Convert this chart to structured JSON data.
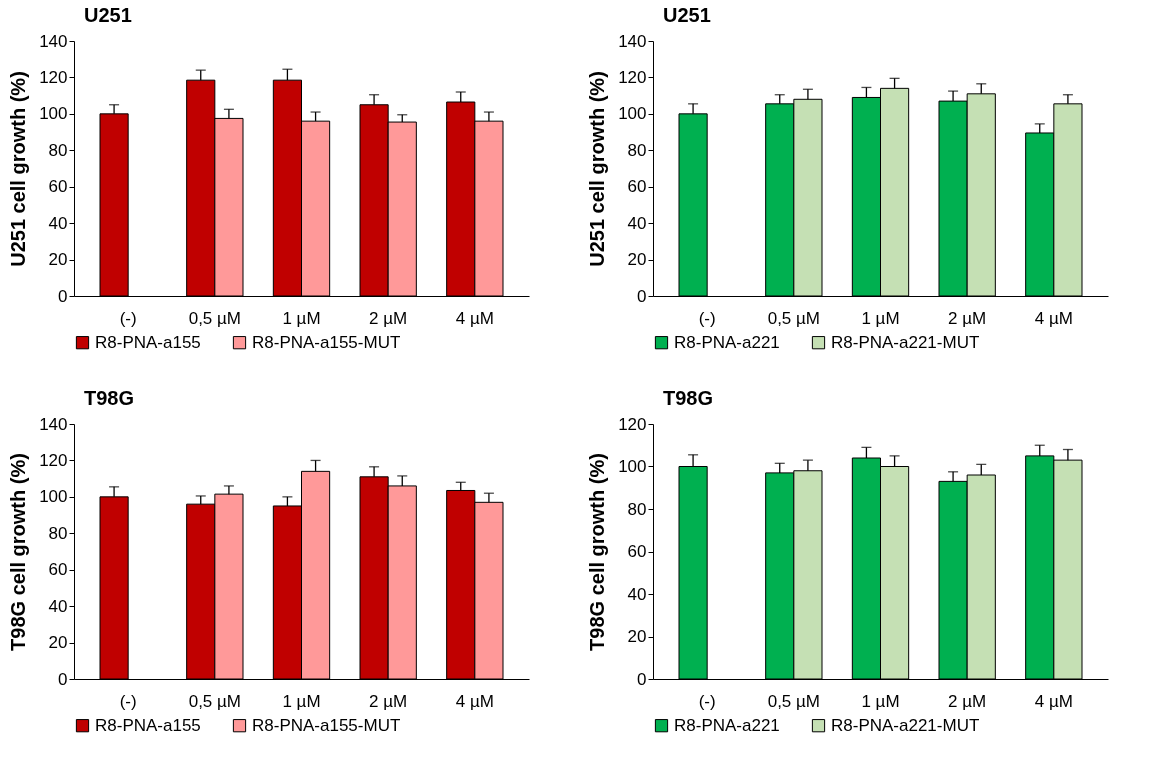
{
  "chart_data": [
    {
      "type": "bar",
      "title": "U251",
      "ylabel": "U251  cell growth  (%)",
      "categories": [
        "(-)",
        "0,5 µM",
        "1 µM",
        "2 µM",
        "4 µM"
      ],
      "ylim": [
        0,
        140
      ],
      "yticks": [
        0,
        20,
        40,
        60,
        80,
        100,
        120,
        140
      ],
      "grid": false,
      "legend": "bottom",
      "series": [
        {
          "name": "R8-PNA-a155",
          "color": "#c00000",
          "values": [
            100,
            118.5,
            118.5,
            105,
            106.5
          ],
          "errors": [
            5,
            5.5,
            6,
            5.5,
            5.5
          ]
        },
        {
          "name": "R8-PNA-a155-MUT",
          "color": "#ff9999",
          "values": [
            null,
            97.5,
            96,
            95.5,
            96
          ],
          "errors": [
            null,
            5,
            5,
            4,
            5
          ]
        }
      ]
    },
    {
      "type": "bar",
      "title": "U251",
      "ylabel": "U251  cell growth  (%)",
      "categories": [
        "(-)",
        "0,5 µM",
        "1 µM",
        "2 µM",
        "4 µM"
      ],
      "ylim": [
        0,
        140
      ],
      "yticks": [
        0,
        20,
        40,
        60,
        80,
        100,
        120,
        140
      ],
      "grid": false,
      "legend": "bottom",
      "series": [
        {
          "name": "R8-PNA-a221",
          "color": "#00b050",
          "values": [
            100,
            105.5,
            109,
            107,
            89.5
          ],
          "errors": [
            5.5,
            5,
            5.5,
            5.5,
            5
          ]
        },
        {
          "name": "R8-PNA-a221-MUT",
          "color": "#c5e0b4",
          "values": [
            null,
            108,
            114,
            111,
            105.5
          ],
          "errors": [
            null,
            5.5,
            5.5,
            5.5,
            5
          ]
        }
      ]
    },
    {
      "type": "bar",
      "title": "T98G",
      "ylabel": "T98G cell growth (%)",
      "categories": [
        "(-)",
        "0,5 µM",
        "1 µM",
        "2 µM",
        "4 µM"
      ],
      "ylim": [
        0,
        140
      ],
      "yticks": [
        0,
        20,
        40,
        60,
        80,
        100,
        120,
        140
      ],
      "grid": false,
      "legend": "bottom",
      "series": [
        {
          "name": "R8-PNA-a155",
          "color": "#c00000",
          "values": [
            100,
            96,
            95,
            111,
            103.5
          ],
          "errors": [
            5.5,
            4.5,
            5,
            5.5,
            4.5
          ]
        },
        {
          "name": "R8-PNA-a155-MUT",
          "color": "#ff9999",
          "values": [
            null,
            101.5,
            114,
            106,
            97
          ],
          "errors": [
            null,
            4.5,
            6,
            5.5,
            5
          ]
        }
      ]
    },
    {
      "type": "bar",
      "title": "T98G",
      "ylabel": "T98G cell growth  (%)",
      "categories": [
        "(-)",
        "0,5 µM",
        "1 µM",
        "2 µM",
        "4 µM"
      ],
      "ylim": [
        0,
        120
      ],
      "yticks": [
        0,
        20,
        40,
        60,
        80,
        100,
        120
      ],
      "grid": false,
      "legend": "bottom",
      "series": [
        {
          "name": "R8-PNA-a221",
          "color": "#00b050",
          "values": [
            100,
            97,
            104,
            93,
            105
          ],
          "errors": [
            5.5,
            4.5,
            5,
            4.5,
            5
          ]
        },
        {
          "name": "R8-PNA-a221-MUT",
          "color": "#c5e0b4",
          "values": [
            null,
            98,
            100,
            96,
            103
          ],
          "errors": [
            null,
            5,
            5,
            5,
            5
          ]
        }
      ]
    }
  ]
}
